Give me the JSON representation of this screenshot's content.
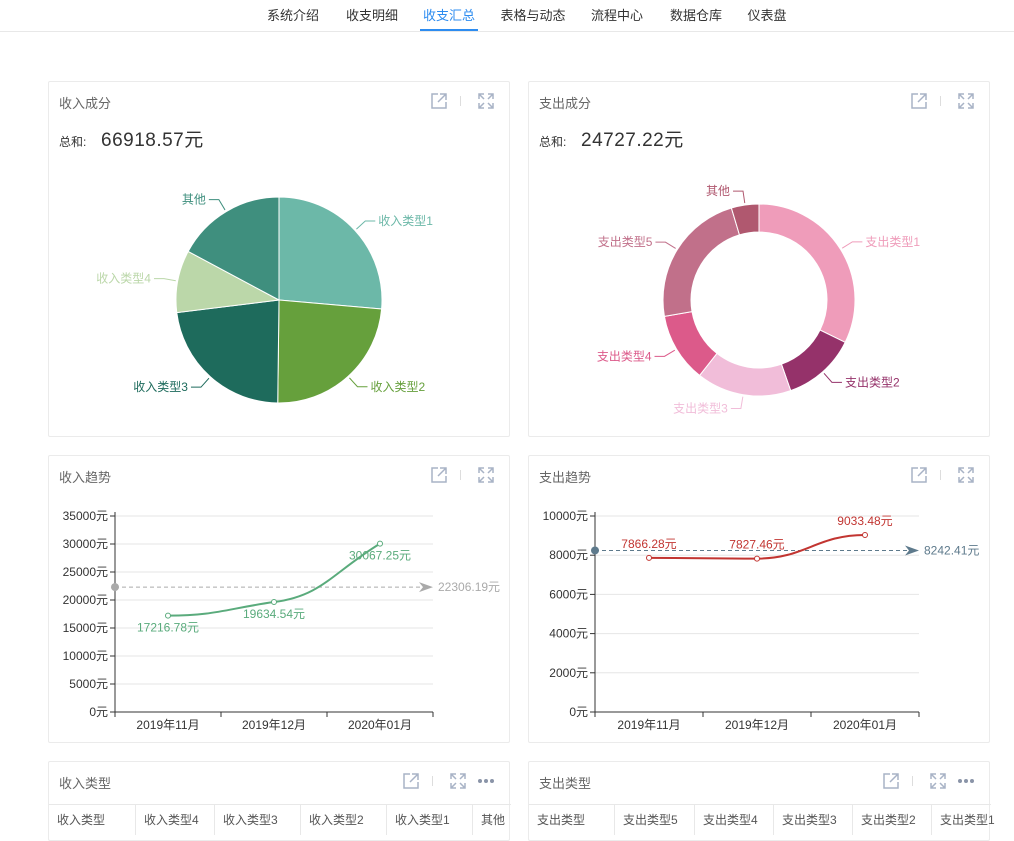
{
  "nav": {
    "items": [
      "系统介绍",
      "收支明细",
      "收支汇总",
      "表格与动态",
      "流程中心",
      "数据仓库",
      "仪表盘"
    ],
    "active": 2
  },
  "income_composition": {
    "title": "收入成分",
    "sum_label": "总和:",
    "sum_value": "66918.57元",
    "chart_data": {
      "type": "pie",
      "categories": [
        "收入类型1",
        "收入类型2",
        "收入类型3",
        "收入类型4",
        "其他"
      ],
      "values": [
        17664,
        15927,
        15290,
        6536,
        11501
      ],
      "colors": [
        "#6cb8a8",
        "#66a03c",
        "#1e6b5c",
        "#bbd7a9",
        "#3f8f7e"
      ]
    }
  },
  "expense_composition": {
    "title": "支出成分",
    "sum_label": "总和:",
    "sum_value": "24727.22元",
    "chart_data": {
      "type": "pie",
      "donut": true,
      "categories": [
        "支出类型1",
        "支出类型2",
        "支出类型3",
        "支出类型4",
        "支出类型5",
        "其他"
      ],
      "values": [
        7980,
        3060,
        3950,
        2880,
        5710,
        1147
      ],
      "colors": [
        "#ef9cba",
        "#95326a",
        "#f1bdd9",
        "#dc5a8a",
        "#c1708a",
        "#b0586f"
      ]
    }
  },
  "income_trend": {
    "title": "收入趋势",
    "chart_data": {
      "type": "line",
      "categories": [
        "2019年11月",
        "2019年12月",
        "2020年01月"
      ],
      "series": [
        {
          "values": [
            17216.78,
            19634.54,
            30067.25
          ]
        }
      ],
      "value_labels": [
        "17216.78元",
        "19634.54元",
        "30067.25元"
      ],
      "yticks": [
        "0元",
        "5000元",
        "10000元",
        "15000元",
        "20000元",
        "25000元",
        "30000元",
        "35000元"
      ],
      "ylim": [
        0,
        35000
      ],
      "average": 22306.19,
      "average_label": "22306.19元",
      "color": "#5aab7c",
      "average_color": "#aaaaaa",
      "grid": true
    }
  },
  "expense_trend": {
    "title": "支出趋势",
    "chart_data": {
      "type": "line",
      "categories": [
        "2019年11月",
        "2019年12月",
        "2020年01月"
      ],
      "series": [
        {
          "values": [
            7866.28,
            7827.46,
            9033.48
          ]
        }
      ],
      "value_labels": [
        "7866.28元",
        "7827.46元",
        "9033.48元"
      ],
      "yticks": [
        "0元",
        "2000元",
        "4000元",
        "6000元",
        "8000元",
        "10000元"
      ],
      "ylim": [
        0,
        10000
      ],
      "average": 8242.41,
      "average_label": "8242.41元",
      "color": "#c23531",
      "average_color": "#5e7a8c",
      "grid": true
    }
  },
  "income_types": {
    "title": "收入类型",
    "columns": [
      "收入类型",
      "收入类型4",
      "收入类型3",
      "收入类型2",
      "收入类型1",
      "其他"
    ]
  },
  "expense_types": {
    "title": "支出类型",
    "columns": [
      "支出类型",
      "支出类型5",
      "支出类型4",
      "支出类型3",
      "支出类型2",
      "支出类型1"
    ]
  },
  "icons": {
    "open": "external-link-icon",
    "fullscreen": "fullscreen-icon",
    "more": "more-icon"
  }
}
